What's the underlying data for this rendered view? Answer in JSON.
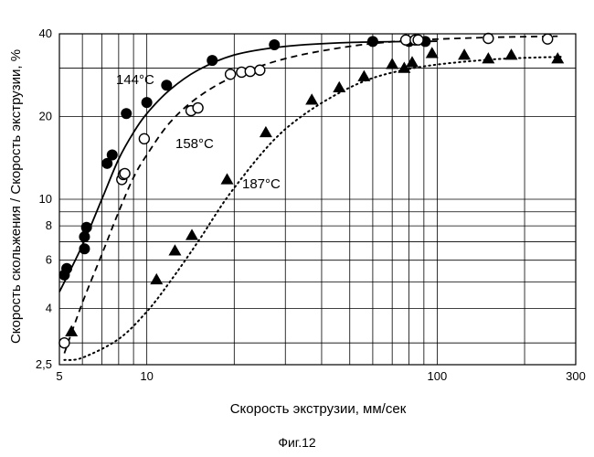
{
  "caption": "Фиг.12",
  "chart_data": {
    "type": "scatter",
    "title": "",
    "xlabel": "Скорость экструзии, мм/сек",
    "ylabel": "Скорость скольжения / Скорость экструзии, %",
    "xscale": "log",
    "yscale": "log",
    "xlim": [
      5,
      300
    ],
    "ylim": [
      2.5,
      40
    ],
    "xticks": [
      5,
      10,
      100,
      300
    ],
    "xtick_labels": [
      "5",
      "10",
      "100",
      "300"
    ],
    "yticks": [
      2.5,
      4,
      6,
      8,
      10,
      20,
      40
    ],
    "ytick_labels": [
      "2,5",
      "4",
      "6",
      "8",
      "10",
      "20",
      "40"
    ],
    "grid": true,
    "series": [
      {
        "name": "144°C",
        "marker": "filled-circle",
        "line_style": "solid",
        "points": [
          [
            5.2,
            5.3
          ],
          [
            5.3,
            5.6
          ],
          [
            6.1,
            6.6
          ],
          [
            6.1,
            7.3
          ],
          [
            6.2,
            7.9
          ],
          [
            7.3,
            13.5
          ],
          [
            7.6,
            14.5
          ],
          [
            8.5,
            20.5
          ],
          [
            10.0,
            22.5
          ],
          [
            11.7,
            26
          ],
          [
            16.8,
            32
          ],
          [
            27.5,
            36.5
          ],
          [
            60,
            37.5
          ],
          [
            80,
            37.5
          ],
          [
            91,
            37.5
          ]
        ],
        "curve": [
          [
            5.0,
            4.6
          ],
          [
            6.0,
            6.8
          ],
          [
            7.0,
            10
          ],
          [
            8.0,
            14
          ],
          [
            9.0,
            17.5
          ],
          [
            10,
            20.5
          ],
          [
            12,
            25
          ],
          [
            15,
            29.5
          ],
          [
            20,
            33.5
          ],
          [
            30,
            36
          ],
          [
            50,
            37.2
          ],
          [
            100,
            37.6
          ]
        ]
      },
      {
        "name": "158°C",
        "marker": "open-circle",
        "line_style": "dashed",
        "points": [
          [
            5.2,
            3.0
          ],
          [
            8.2,
            11.8
          ],
          [
            8.3,
            12.3
          ],
          [
            8.4,
            12.4
          ],
          [
            9.8,
            16.6
          ],
          [
            14.2,
            21
          ],
          [
            15,
            21.5
          ],
          [
            19.4,
            28.5
          ],
          [
            21.2,
            29
          ],
          [
            22.7,
            29.2
          ],
          [
            24.5,
            29.5
          ],
          [
            78,
            38
          ],
          [
            84,
            38
          ],
          [
            86,
            38
          ],
          [
            150,
            38.5
          ],
          [
            240,
            38.3
          ]
        ],
        "curve": [
          [
            5.2,
            2.75
          ],
          [
            6.0,
            4.2
          ],
          [
            7.0,
            6.3
          ],
          [
            8.0,
            9.0
          ],
          [
            9.0,
            12
          ],
          [
            10,
            14.5
          ],
          [
            12,
            19
          ],
          [
            15,
            23.5
          ],
          [
            20,
            28
          ],
          [
            30,
            32.5
          ],
          [
            50,
            36
          ],
          [
            80,
            37.8
          ],
          [
            150,
            38.8
          ],
          [
            260,
            39.2
          ]
        ]
      },
      {
        "name": "187°C",
        "marker": "filled-triangle",
        "line_style": "dotted",
        "points": [
          [
            5.5,
            3.3
          ],
          [
            10.8,
            5.1
          ],
          [
            12.5,
            6.5
          ],
          [
            14.3,
            7.4
          ],
          [
            18.9,
            11.8
          ],
          [
            25.7,
            17.5
          ],
          [
            37,
            23
          ],
          [
            46,
            25.5
          ],
          [
            56,
            28
          ],
          [
            70,
            31
          ],
          [
            77,
            30
          ],
          [
            82,
            31.5
          ],
          [
            96,
            34
          ],
          [
            124,
            33.5
          ],
          [
            150,
            32.5
          ],
          [
            180,
            33.5
          ],
          [
            260,
            32.5
          ]
        ],
        "curve": [
          [
            5.2,
            2.6
          ],
          [
            6.0,
            2.65
          ],
          [
            8.0,
            3.1
          ],
          [
            10,
            3.9
          ],
          [
            12,
            5.0
          ],
          [
            15,
            7.0
          ],
          [
            20,
            11
          ],
          [
            30,
            18
          ],
          [
            50,
            25.5
          ],
          [
            80,
            29.8
          ],
          [
            150,
            32.2
          ],
          [
            270,
            33
          ]
        ]
      }
    ],
    "annotations": [
      "144°C",
      "158°C",
      "187°C"
    ]
  }
}
